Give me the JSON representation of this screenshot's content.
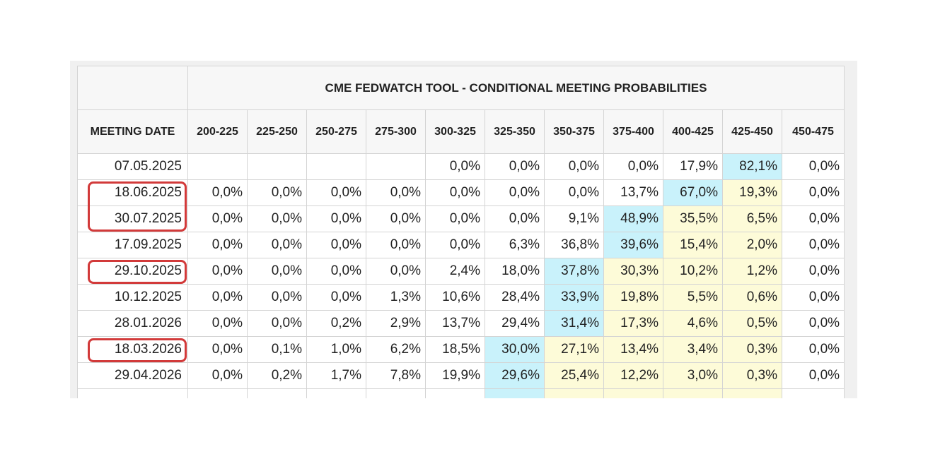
{
  "title": "CME FEDWATCH TOOL - CONDITIONAL MEETING PROBABILITIES",
  "header": {
    "date_label": "MEETING DATE",
    "ranges": [
      "200-225",
      "225-250",
      "250-275",
      "275-300",
      "300-325",
      "325-350",
      "350-375",
      "375-400",
      "400-425",
      "425-450",
      "450-475"
    ]
  },
  "highlight_colors": {
    "cyan": "#c9f2fb",
    "yellow": "#fdfbd8",
    "marker": "#d23a3a"
  },
  "rows": [
    {
      "date": "07.05.2025",
      "values": [
        "",
        "",
        "",
        "",
        "0,0%",
        "0,0%",
        "0,0%",
        "0,0%",
        "17,9%",
        "82,1%",
        "0,0%"
      ],
      "highlight": [
        "",
        "",
        "",
        "",
        "",
        "",
        "",
        "",
        "",
        "cyan",
        ""
      ],
      "marked": false
    },
    {
      "date": "18.06.2025",
      "values": [
        "0,0%",
        "0,0%",
        "0,0%",
        "0,0%",
        "0,0%",
        "0,0%",
        "0,0%",
        "13,7%",
        "67,0%",
        "19,3%",
        "0,0%"
      ],
      "highlight": [
        "",
        "",
        "",
        "",
        "",
        "",
        "",
        "",
        "cyan",
        "yellow",
        ""
      ],
      "marked": true
    },
    {
      "date": "30.07.2025",
      "values": [
        "0,0%",
        "0,0%",
        "0,0%",
        "0,0%",
        "0,0%",
        "0,0%",
        "9,1%",
        "48,9%",
        "35,5%",
        "6,5%",
        "0,0%"
      ],
      "highlight": [
        "",
        "",
        "",
        "",
        "",
        "",
        "",
        "cyan",
        "yellow",
        "yellow",
        ""
      ],
      "marked": true
    },
    {
      "date": "17.09.2025",
      "values": [
        "0,0%",
        "0,0%",
        "0,0%",
        "0,0%",
        "0,0%",
        "6,3%",
        "36,8%",
        "39,6%",
        "15,4%",
        "2,0%",
        "0,0%"
      ],
      "highlight": [
        "",
        "",
        "",
        "",
        "",
        "",
        "",
        "cyan",
        "yellow",
        "yellow",
        ""
      ],
      "marked": false
    },
    {
      "date": "29.10.2025",
      "values": [
        "0,0%",
        "0,0%",
        "0,0%",
        "0,0%",
        "2,4%",
        "18,0%",
        "37,8%",
        "30,3%",
        "10,2%",
        "1,2%",
        "0,0%"
      ],
      "highlight": [
        "",
        "",
        "",
        "",
        "",
        "",
        "cyan",
        "yellow",
        "yellow",
        "yellow",
        ""
      ],
      "marked": true
    },
    {
      "date": "10.12.2025",
      "values": [
        "0,0%",
        "0,0%",
        "0,0%",
        "1,3%",
        "10,6%",
        "28,4%",
        "33,9%",
        "19,8%",
        "5,5%",
        "0,6%",
        "0,0%"
      ],
      "highlight": [
        "",
        "",
        "",
        "",
        "",
        "",
        "cyan",
        "yellow",
        "yellow",
        "yellow",
        ""
      ],
      "marked": false
    },
    {
      "date": "28.01.2026",
      "values": [
        "0,0%",
        "0,0%",
        "0,2%",
        "2,9%",
        "13,7%",
        "29,4%",
        "31,4%",
        "17,3%",
        "4,6%",
        "0,5%",
        "0,0%"
      ],
      "highlight": [
        "",
        "",
        "",
        "",
        "",
        "",
        "cyan",
        "yellow",
        "yellow",
        "yellow",
        ""
      ],
      "marked": false
    },
    {
      "date": "18.03.2026",
      "values": [
        "0,0%",
        "0,1%",
        "1,0%",
        "6,2%",
        "18,5%",
        "30,0%",
        "27,1%",
        "13,4%",
        "3,4%",
        "0,3%",
        "0,0%"
      ],
      "highlight": [
        "",
        "",
        "",
        "",
        "",
        "cyan",
        "yellow",
        "yellow",
        "yellow",
        "yellow",
        ""
      ],
      "marked": true
    },
    {
      "date": "29.04.2026",
      "values": [
        "0,0%",
        "0,2%",
        "1,7%",
        "7,8%",
        "19,9%",
        "29,6%",
        "25,4%",
        "12,2%",
        "3,0%",
        "0,3%",
        "0,0%"
      ],
      "highlight": [
        "",
        "",
        "",
        "",
        "",
        "cyan",
        "yellow",
        "yellow",
        "yellow",
        "yellow",
        ""
      ],
      "marked": false
    },
    {
      "date": "",
      "values": [
        "",
        "",
        "",
        "",
        "",
        "",
        "",
        "",
        "",
        "",
        ""
      ],
      "highlight": [
        "",
        "",
        "",
        "",
        "",
        "cyan",
        "yellow",
        "yellow",
        "yellow",
        "yellow",
        ""
      ],
      "marked": false
    }
  ]
}
